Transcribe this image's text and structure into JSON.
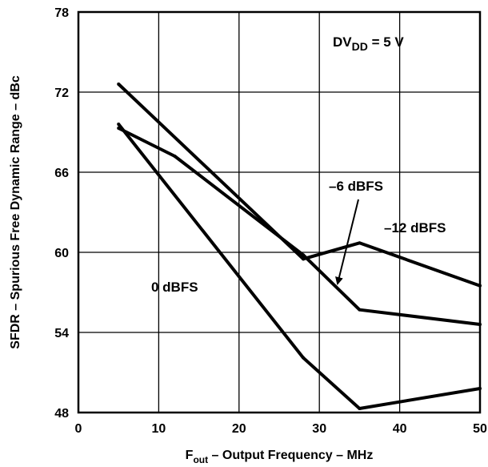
{
  "chart_data": {
    "type": "line",
    "xlabel_main": "F",
    "xlabel_sub": "out",
    "xlabel_rest": " – Output Frequency – MHz",
    "ylabel": "SFDR – Spurious Free Dynamic Range – dBc",
    "xlim": [
      0,
      50
    ],
    "ylim": [
      48,
      78
    ],
    "xticks": [
      0,
      10,
      20,
      30,
      40,
      50
    ],
    "yticks": [
      48,
      54,
      60,
      66,
      72,
      78
    ],
    "grid": true,
    "series": [
      {
        "name": "0 dBFS",
        "x": [
          5,
          28,
          35,
          50
        ],
        "y": [
          69.6,
          52.1,
          48.3,
          49.8
        ]
      },
      {
        "name": "–6 dBFS",
        "x": [
          5,
          12,
          28,
          35,
          50
        ],
        "y": [
          69.3,
          67.2,
          59.8,
          55.7,
          54.6
        ]
      },
      {
        "name": "–12 dBFS",
        "x": [
          5,
          28,
          35,
          50
        ],
        "y": [
          72.6,
          59.5,
          60.7,
          57.5
        ]
      }
    ],
    "annotations": {
      "supply_main": "DV",
      "supply_sub": "DD",
      "supply_rest": " = 5 V",
      "label_0": "0 dBFS",
      "label_6": "–6 dBFS",
      "label_12": "–12 dBFS"
    }
  }
}
